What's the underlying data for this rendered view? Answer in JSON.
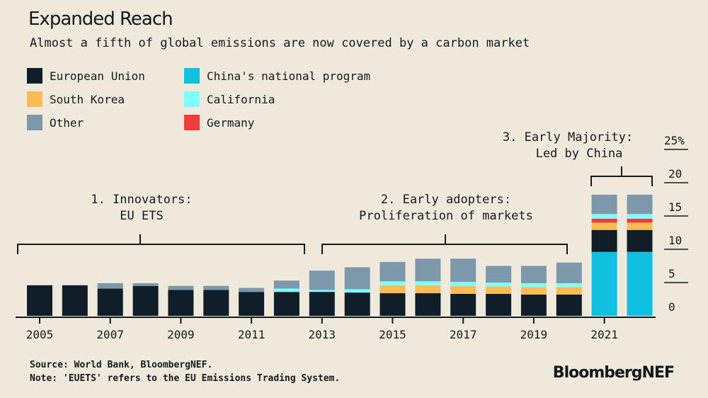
{
  "header": {
    "title": "Expanded Reach",
    "subtitle": "Almost a fifth of global emissions are now covered by a carbon market"
  },
  "annotations": {
    "phase1_line1": "1. Innovators:",
    "phase1_line2": "EU ETS",
    "phase2_line1": "2. Early adopters:",
    "phase2_line2": "Proliferation of markets",
    "phase3_line1": "3. Early Majority:",
    "phase3_line2": "Led by China"
  },
  "footer": {
    "source": "Source: World Bank, BloombergNEF.",
    "note": "Note: 'EUETS' refers to the EU Emissions Trading System.",
    "brand": "BloombergNEF"
  },
  "chart_data": {
    "type": "bar",
    "stacked": true,
    "title": "Expanded Reach",
    "ylabel": "",
    "ylim": [
      0,
      25
    ],
    "yticks": [
      "0",
      "5",
      "10",
      "15",
      "20",
      "25%"
    ],
    "ytick_values": [
      0,
      5,
      10,
      15,
      20,
      25
    ],
    "y_axis_position": "right",
    "categories": [
      "2005",
      "2006",
      "2007",
      "2008",
      "2009",
      "2010",
      "2011",
      "2012",
      "2013",
      "2014",
      "2015",
      "2016",
      "2017",
      "2018",
      "2019",
      "2020",
      "2021",
      "2022"
    ],
    "x_tick_labels": [
      "2005",
      "",
      "2007",
      "",
      "2009",
      "",
      "2011",
      "",
      "2013",
      "",
      "2015",
      "",
      "2017",
      "",
      "2019",
      "",
      "2021",
      ""
    ],
    "series": [
      {
        "name": "China's national program",
        "color": "#10c0e0",
        "values": [
          0,
          0,
          0,
          0,
          0,
          0,
          0,
          0,
          0,
          0,
          0,
          0,
          0,
          0,
          0,
          0,
          9.6,
          9.6
        ]
      },
      {
        "name": "European Union",
        "color": "#0f1e29",
        "values": [
          4.6,
          4.6,
          4.1,
          4.5,
          3.9,
          3.9,
          3.6,
          3.6,
          3.6,
          3.5,
          3.4,
          3.4,
          3.3,
          3.3,
          3.2,
          3.2,
          3.3,
          3.3
        ]
      },
      {
        "name": "South Korea",
        "color": "#f8bb55",
        "values": [
          0,
          0,
          0,
          0,
          0,
          0,
          0,
          0,
          0,
          0,
          1.2,
          1.2,
          1.2,
          1.1,
          1.1,
          1.1,
          1.1,
          1.1
        ]
      },
      {
        "name": "Germany",
        "color": "#f23c3c",
        "values": [
          0,
          0,
          0,
          0,
          0,
          0,
          0,
          0,
          0,
          0,
          0,
          0,
          0,
          0,
          0,
          0,
          0.6,
          0.6
        ]
      },
      {
        "name": "California",
        "color": "#7ffcfc",
        "values": [
          0,
          0,
          0,
          0,
          0,
          0,
          0,
          0.5,
          0.3,
          0.5,
          0.6,
          0.6,
          0.6,
          0.6,
          0.6,
          0.6,
          0.7,
          0.7
        ]
      },
      {
        "name": "Other",
        "color": "#7d98ab",
        "values": [
          0,
          0,
          0.8,
          0.4,
          0.6,
          0.6,
          0.6,
          1.2,
          2.9,
          3.3,
          2.9,
          3.4,
          3.5,
          2.5,
          2.6,
          3.1,
          2.9,
          2.9
        ]
      }
    ],
    "legend": [
      {
        "name": "European Union",
        "color": "#0f1e29"
      },
      {
        "name": "South Korea",
        "color": "#f8bb55"
      },
      {
        "name": "Other",
        "color": "#7d98ab"
      },
      {
        "name": "China's national program",
        "color": "#10c0e0"
      },
      {
        "name": "California",
        "color": "#7ffcfc"
      },
      {
        "name": "Germany",
        "color": "#f23c3c"
      }
    ],
    "legend_placement": "top-left"
  }
}
